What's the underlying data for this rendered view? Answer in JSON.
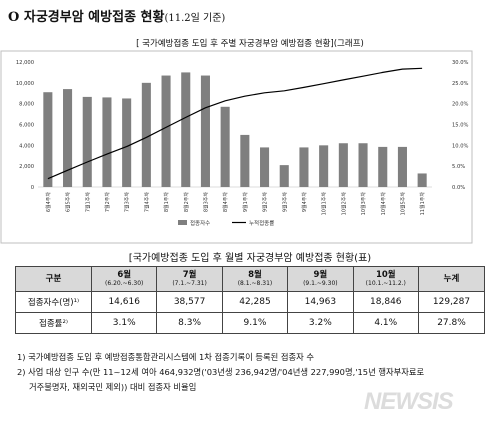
{
  "page": {
    "title_marker": "O",
    "title": "자궁경부암 예방접종 현황",
    "title_date": "(11.2일 기준)",
    "chart_caption": "[ 국가예방접종 도입 후 주별 자궁경부암 예방접종 현황](그래프)",
    "table_caption": "[국가예방접종 도입 후 월별 자궁경부암 예방접종 현황(표)",
    "watermark": "NEWSIS"
  },
  "chart_data": {
    "type": "bar",
    "categories": [
      "6월4주차",
      "6월5주차",
      "7월1주차",
      "7월2주차",
      "7월3주차",
      "7월4주차",
      "8월1주차",
      "8월2주차",
      "8월3주차",
      "8월4주차",
      "9월1주차",
      "9월2주차",
      "9월3주차",
      "9월4주차",
      "10월1주차",
      "10월2주차",
      "10월3주차",
      "10월4주차",
      "10월5주차",
      "11월1주차"
    ],
    "series": [
      {
        "name": "접종자수",
        "type": "bar",
        "values": [
          9100,
          9400,
          8650,
          8600,
          8500,
          10000,
          10700,
          11000,
          10700,
          7700,
          5000,
          3800,
          2100,
          3800,
          4000,
          4200,
          4200,
          3850,
          3850,
          1300
        ]
      },
      {
        "name": "누적접종률",
        "type": "line",
        "axis": "right",
        "values": [
          2.0,
          4.0,
          6.0,
          7.9,
          9.7,
          11.9,
          14.3,
          16.7,
          19.0,
          20.7,
          21.8,
          22.6,
          23.1,
          23.9,
          24.8,
          25.7,
          26.6,
          27.5,
          28.3,
          28.5
        ]
      }
    ],
    "ylim": [
      0,
      12000
    ],
    "y_ticks": [
      "0",
      "2,000",
      "4,000",
      "6,000",
      "8,000",
      "10,000",
      "12,000"
    ],
    "ylim_right": [
      0,
      30
    ],
    "y2_ticks": [
      "0.0%",
      "5.0%",
      "10.0%",
      "15.0%",
      "20.0%",
      "25.0%",
      "30.0%"
    ],
    "bar_color": "#7f7f7f",
    "line_color": "#000000",
    "legend_placement": "bottom"
  },
  "table": {
    "header_label": "구분",
    "months": [
      {
        "label": "6월",
        "range": "(6.20.~6.30)"
      },
      {
        "label": "7월",
        "range": "(7.1.~7.31)"
      },
      {
        "label": "8월",
        "range": "(8.1.~8.31)"
      },
      {
        "label": "9월",
        "range": "(9.1.~9.30)"
      },
      {
        "label": "10월",
        "range": "(10.1.~11.2.)"
      }
    ],
    "total_label": "누계",
    "rows": [
      {
        "label": "접종자수(명)¹⁾",
        "values": [
          "14,616",
          "38,577",
          "42,285",
          "14,963",
          "18,846"
        ],
        "total": "129,287"
      },
      {
        "label": "접종률²⁾",
        "values": [
          "3.1%",
          "8.3%",
          "9.1%",
          "3.2%",
          "4.1%"
        ],
        "total": "27.8%"
      }
    ]
  },
  "notes": {
    "n1": "1) 국가예방접종 도입 후 예방접종통합관리시스템에 1차 접종기록이 등록된 접종자 수",
    "n2a": "2) 사업 대상 인구 수(만 11~12세 여아 464,932명('03년생 236,942명/'04년생 227,990명,'15년 행자부자료로",
    "n2b": "거주불명자, 재외국민 제외)) 대비 접종자 비율임"
  }
}
